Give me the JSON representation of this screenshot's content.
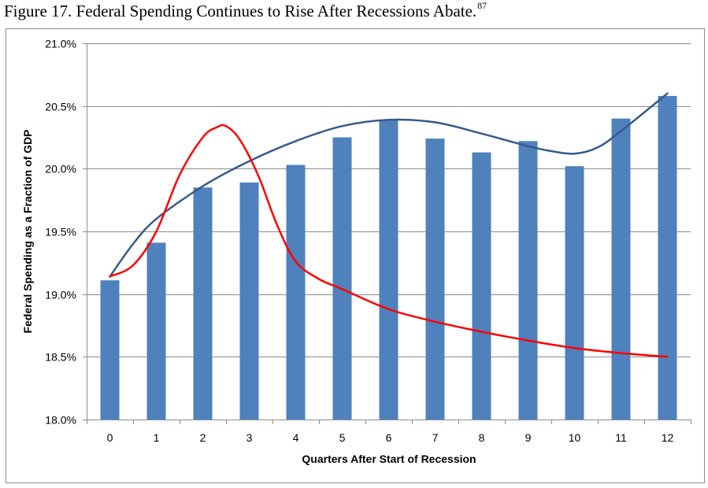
{
  "figure": {
    "title": "Figure 17. Federal Spending Continues to Rise After Recessions Abate.",
    "footnote": "87"
  },
  "chart_data": {
    "type": "bar",
    "title": "",
    "xlabel": "Quarters After Start of Recession",
    "ylabel": "Federal Spending as a Fraction of GDP",
    "categories": [
      "0",
      "1",
      "2",
      "3",
      "4",
      "5",
      "6",
      "7",
      "8",
      "9",
      "10",
      "11",
      "12"
    ],
    "values": [
      19.11,
      19.41,
      19.85,
      19.89,
      20.03,
      20.25,
      20.39,
      20.24,
      20.13,
      20.22,
      20.02,
      20.4,
      20.58
    ],
    "ylim": [
      18.0,
      21.0
    ],
    "yticks": [
      18.0,
      18.5,
      19.0,
      19.5,
      20.0,
      20.5,
      21.0
    ],
    "ytick_labels": [
      "18.0%",
      "18.5%",
      "19.0%",
      "19.5%",
      "20.0%",
      "20.5%",
      "21.0%"
    ],
    "grid": true,
    "bar_color": "#4F81BD",
    "lines": [
      {
        "color": "#375A8A",
        "x": [
          0,
          0.5,
          1,
          2,
          3,
          4,
          5,
          6,
          7,
          8,
          9,
          9.5,
          10,
          10.5,
          11,
          12
        ],
        "y": [
          19.14,
          19.4,
          19.6,
          19.86,
          20.06,
          20.22,
          20.34,
          20.39,
          20.37,
          20.28,
          20.18,
          20.14,
          20.12,
          20.17,
          20.3,
          20.6
        ]
      },
      {
        "color": "#FF0000",
        "x": [
          0,
          0.5,
          1,
          1.5,
          2,
          2.3,
          2.5,
          2.8,
          3.2,
          3.6,
          4,
          4.5,
          5,
          6,
          7,
          8,
          9,
          10,
          11,
          12
        ],
        "y": [
          19.14,
          19.23,
          19.5,
          19.95,
          20.25,
          20.33,
          20.34,
          20.23,
          19.94,
          19.55,
          19.26,
          19.12,
          19.04,
          18.88,
          18.78,
          18.7,
          18.63,
          18.57,
          18.53,
          18.5
        ]
      }
    ],
    "legend": "none"
  }
}
